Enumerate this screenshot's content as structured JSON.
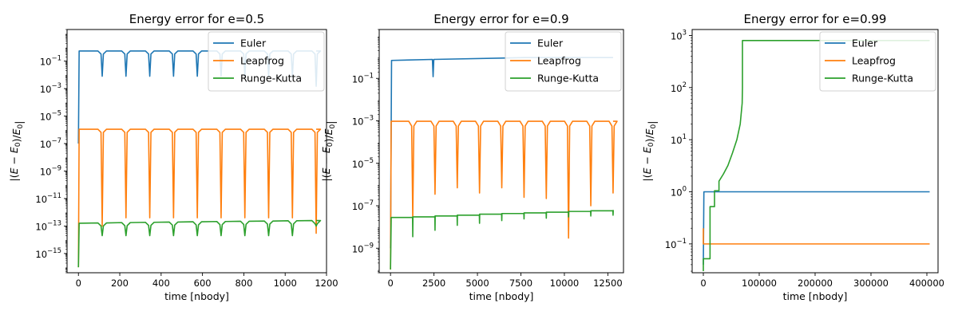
{
  "chart_data": [
    {
      "type": "line",
      "title": "Energy error for e=0.5",
      "xlabel": "time [nbody]",
      "ylabel": "|(E - E0)/E0|",
      "yscale": "log",
      "xlim": [
        -55,
        1200
      ],
      "ylim": [
        4e-17,
        20
      ],
      "x_ticks": [
        0,
        200,
        400,
        600,
        800,
        1000,
        1200
      ],
      "x_tick_labels": [
        "0",
        "200",
        "400",
        "600",
        "800",
        "1000",
        "1200"
      ],
      "y_ticks": [
        1e-15,
        1e-13,
        1e-11,
        1e-09,
        1e-07,
        1e-05,
        0.001,
        0.1
      ],
      "y_tick_labels": [
        [
          "10",
          "−15"
        ],
        [
          "10",
          "−13"
        ],
        [
          "10",
          "−11"
        ],
        [
          "10",
          "−9"
        ],
        [
          "10",
          "−7"
        ],
        [
          "10",
          "−5"
        ],
        [
          "10",
          "−3"
        ],
        [
          "10",
          "−1"
        ]
      ],
      "legend": "top-right",
      "series": [
        {
          "name": "Euler",
          "color": "#1f77b4",
          "kind": "periodic",
          "x_start": 0,
          "x_end": 1150,
          "period": 115,
          "high": 0.55,
          "dip": 0.008,
          "dip_first": 0.008,
          "spike_last": 0.0015,
          "start_low": 1e-07
        },
        {
          "name": "Leapfrog",
          "color": "#ff7f0e",
          "kind": "periodic",
          "x_start": 0,
          "x_end": 1150,
          "period": 115,
          "high": 1.1e-06,
          "dip": 4e-13,
          "dip_first": 1e-13,
          "spike_last": 3e-14,
          "start_low": 1e-16
        },
        {
          "name": "Runge-Kutta",
          "color": "#2ca02c",
          "kind": "periodic",
          "x_start": 0,
          "x_end": 1150,
          "period": 115,
          "high_start": 1.6e-13,
          "high_end": 2.5e-13,
          "dip": 2e-14,
          "dip_first": 2e-14,
          "spike_last": 1e-13,
          "start_low": 1e-16
        }
      ]
    },
    {
      "type": "line",
      "title": "Energy error for e=0.9",
      "xlabel": "time [nbody]",
      "ylabel": "|(E - E0)/E0|",
      "yscale": "log",
      "xlim": [
        -650,
        13400
      ],
      "ylim": [
        7e-11,
        20
      ],
      "x_ticks": [
        0,
        2500,
        5000,
        7500,
        10000,
        12500
      ],
      "x_tick_labels": [
        "0",
        "2500",
        "5000",
        "7500",
        "10000",
        "12500"
      ],
      "y_ticks": [
        1e-09,
        1e-07,
        1e-05,
        0.001,
        0.1
      ],
      "y_tick_labels": [
        [
          "10",
          "−9"
        ],
        [
          "10",
          "−7"
        ],
        [
          "10",
          "−5"
        ],
        [
          "10",
          "−3"
        ],
        [
          "10",
          "−1"
        ]
      ],
      "legend": "top-right",
      "series": [
        {
          "name": "Euler",
          "color": "#1f77b4",
          "kind": "rise",
          "x_start": 0,
          "x_end": 12800,
          "start_low": 1e-09,
          "level_start": 0.7,
          "level_end": 0.95,
          "dips": [
            [
              2450,
              0.12
            ]
          ]
        },
        {
          "name": "Leapfrog",
          "color": "#ff7f0e",
          "kind": "periodic",
          "x_start": 0,
          "x_end": 12800,
          "period": 1280,
          "high": 0.00095,
          "dip_list": [
            2.5e-08,
            3.5e-07,
            7e-07,
            4e-07,
            7e-07,
            2.5e-07,
            2.2e-07,
            3e-09,
            1e-07,
            4e-07,
            5e-07
          ],
          "start_low": 1e-10
        },
        {
          "name": "Runge-Kutta",
          "color": "#2ca02c",
          "kind": "step",
          "x_start": 0,
          "x_end": 12800,
          "period": 1280,
          "step_values": [
            2.8e-08,
            3e-08,
            3.3e-08,
            3.6e-08,
            4e-08,
            4.3e-08,
            4.6e-08,
            5e-08,
            5.4e-08,
            5.8e-08,
            6e-08
          ],
          "dip_list": [
            3.5e-09,
            7e-09,
            1.2e-08,
            1.5e-08,
            2e-08,
            2.4e-08,
            2.6e-08,
            3e-08,
            3.3e-08,
            3.6e-08
          ],
          "end_value": 4e-08,
          "start_low": 1e-10
        }
      ]
    },
    {
      "type": "line",
      "title": "Energy error for e=0.99",
      "xlabel": "time [nbody]",
      "ylabel": "|(E - E0)/E0|",
      "yscale": "log",
      "xlim": [
        -20000,
        420000
      ],
      "ylim": [
        0.028,
        1300
      ],
      "x_ticks": [
        0,
        100000,
        200000,
        300000,
        400000
      ],
      "x_tick_labels": [
        "0",
        "100000",
        "200000",
        "300000",
        "400000"
      ],
      "y_ticks": [
        0.1,
        1,
        10,
        100,
        1000
      ],
      "y_tick_labels": [
        [
          "10",
          "−1"
        ],
        [
          "10",
          "0"
        ],
        [
          "10",
          "1"
        ],
        [
          "10",
          "2"
        ],
        [
          "10",
          "3"
        ]
      ],
      "legend": "top-right",
      "series": [
        {
          "name": "Euler",
          "color": "#1f77b4",
          "kind": "points",
          "points": [
            [
              0,
              0.04
            ],
            [
              1000,
              1.0
            ],
            [
              405000,
              1.0
            ]
          ]
        },
        {
          "name": "Leapfrog",
          "color": "#ff7f0e",
          "kind": "points",
          "points": [
            [
              0,
              0.2
            ],
            [
              0,
              0.1
            ],
            [
              405000,
              0.1
            ]
          ]
        },
        {
          "name": "Runge-Kutta",
          "color": "#2ca02c",
          "kind": "points",
          "points": [
            [
              0,
              0.03
            ],
            [
              0,
              0.052
            ],
            [
              12000,
              0.052
            ],
            [
              12000,
              0.52
            ],
            [
              20000,
              0.52
            ],
            [
              20000,
              1.05
            ],
            [
              28000,
              1.05
            ],
            [
              28000,
              1.6
            ],
            [
              36000,
              2.2
            ],
            [
              44000,
              3.2
            ],
            [
              52000,
              5.5
            ],
            [
              60000,
              10
            ],
            [
              66000,
              20
            ],
            [
              69500,
              50
            ],
            [
              70000,
              100
            ],
            [
              70000,
              800
            ],
            [
              405000,
              800
            ]
          ]
        }
      ]
    }
  ]
}
